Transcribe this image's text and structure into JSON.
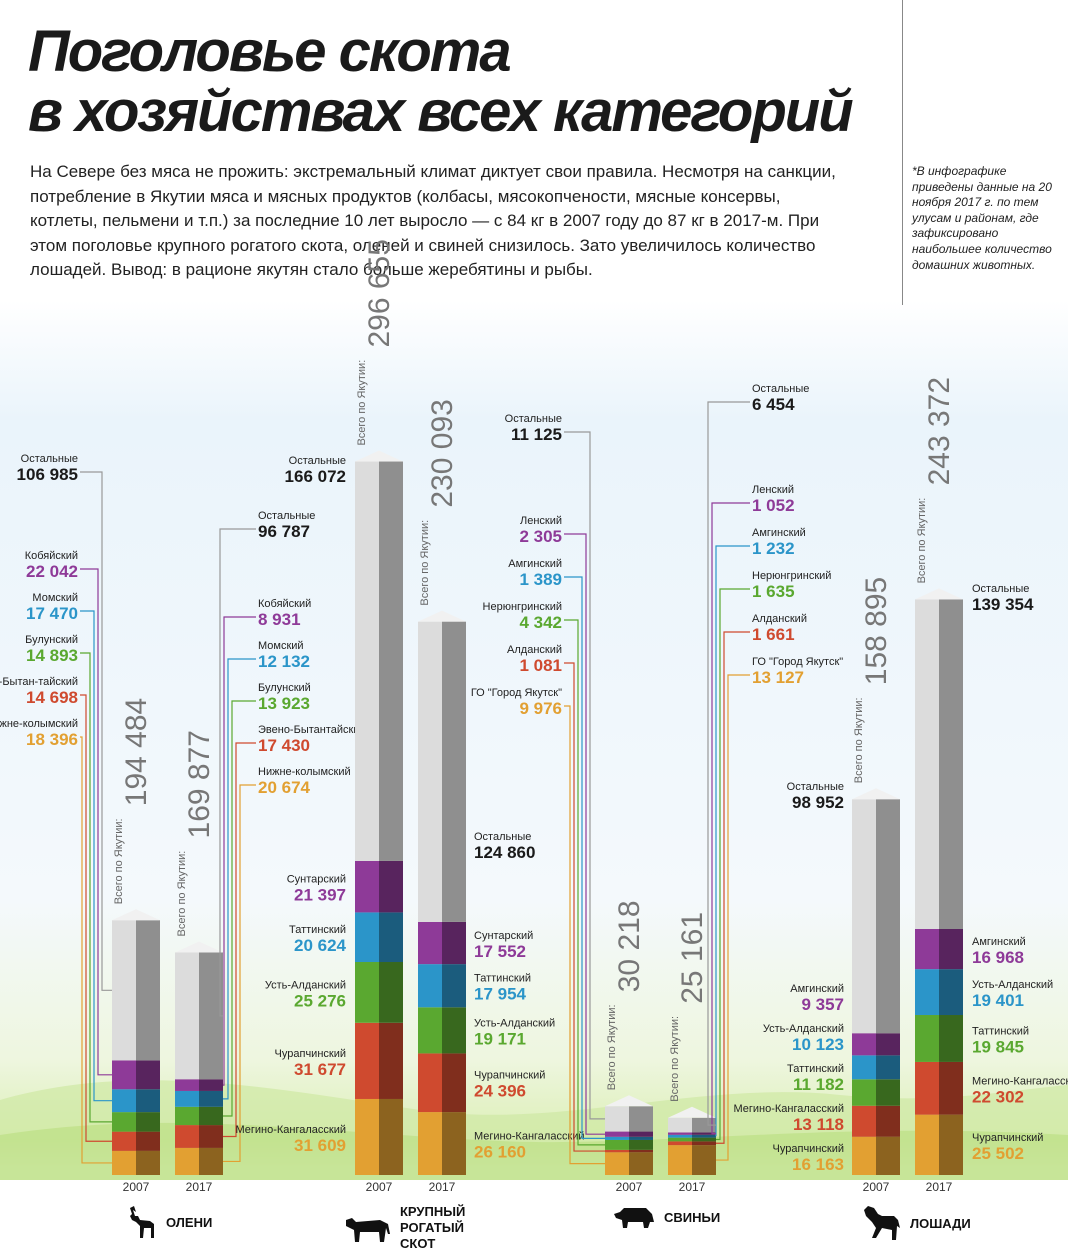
{
  "header": {
    "title_lines": [
      "Поголовье скота",
      "в хозяйствах всех категорий"
    ],
    "intro": "На Севере без мяса не прожить: экстремальный климат диктует свои правила. Несмотря на санкции, потребление в Якутии мяса и мясных продуктов (колбасы, мясокопчености, мясные консервы, котлеты, пельмени и т.п.) за последние 10 лет выросло — с 84 кг в 2007 году до 87 кг в 2017-м. При этом поголовье крупного рогатого скота, оленей и свиней снизилось. Зато увеличилось количество лошадей. Вывод: в рационе якутян стало больше жеребятины и рыбы.",
    "footnote": "*В инфографике приведены данные на 20 ноября 2017 г. по тем улусам и районам, где зафиксировано наибольшее количество домашних животных."
  },
  "total_label": "Всего по Якутии:",
  "colors": {
    "others": "#dcdcdc",
    "purple": "#8e3a98",
    "blue": "#2b95c9",
    "green": "#5aa830",
    "red": "#cf4a2f",
    "orange": "#e2a032",
    "text_dark": "#1a1a1a"
  },
  "chart_data": {
    "type": "bar",
    "stacked": true,
    "groups": [
      {
        "name": "ОЛЕНИ",
        "icon": "deer-icon",
        "bars": [
          {
            "year": "2007",
            "total": "194 484",
            "segments": [
              {
                "label": "Нижне-колымский",
                "value": 18396,
                "text": "18 396",
                "color": "orange"
              },
              {
                "label": "Эвено-Бытан-тайский",
                "value": 14698,
                "text": "14 698",
                "color": "red"
              },
              {
                "label": "Булунский",
                "value": 14893,
                "text": "14 893",
                "color": "green"
              },
              {
                "label": "Момский",
                "value": 17470,
                "text": "17 470",
                "color": "blue"
              },
              {
                "label": "Кобяйский",
                "value": 22042,
                "text": "22 042",
                "color": "purple"
              },
              {
                "label": "Остальные",
                "value": 106985,
                "text": "106 985",
                "color": "others"
              }
            ]
          },
          {
            "year": "2017",
            "total": "169 877",
            "segments": [
              {
                "label": "Нижне-колымский",
                "value": 20674,
                "text": "20 674",
                "color": "orange"
              },
              {
                "label": "Эвено-Бытантайский",
                "value": 17430,
                "text": "17 430",
                "color": "red"
              },
              {
                "label": "Булунский",
                "value": 13923,
                "text": "13 923",
                "color": "green"
              },
              {
                "label": "Момский",
                "value": 12132,
                "text": "12 132",
                "color": "blue"
              },
              {
                "label": "Кобяйский",
                "value": 8931,
                "text": "8 931",
                "color": "purple"
              },
              {
                "label": "Остальные",
                "value": 96787,
                "text": "96 787",
                "color": "others"
              }
            ]
          }
        ]
      },
      {
        "name": "КРУПНЫЙ РОГАТЫЙ СКОТ",
        "icon": "cow-icon",
        "bars": [
          {
            "year": "2007",
            "total": "296 655",
            "segments": [
              {
                "label": "Мегино-Кангаласский",
                "value": 31609,
                "text": "31 609",
                "color": "orange"
              },
              {
                "label": "Чурапчинский",
                "value": 31677,
                "text": "31 677",
                "color": "red"
              },
              {
                "label": "Усть-Алданский",
                "value": 25276,
                "text": "25 276",
                "color": "green"
              },
              {
                "label": "Таттинский",
                "value": 20624,
                "text": "20 624",
                "color": "blue"
              },
              {
                "label": "Сунтарский",
                "value": 21397,
                "text": "21 397",
                "color": "purple"
              },
              {
                "label": "Остальные",
                "value": 166072,
                "text": "166 072",
                "color": "others"
              }
            ]
          },
          {
            "year": "2017",
            "total": "230 093",
            "segments": [
              {
                "label": "Мегино-Кангаласский",
                "value": 26160,
                "text": "26 160",
                "color": "orange"
              },
              {
                "label": "Чурапчинский",
                "value": 24396,
                "text": "24 396",
                "color": "red"
              },
              {
                "label": "Усть-Алданский",
                "value": 19171,
                "text": "19 171",
                "color": "green"
              },
              {
                "label": "Таттинский",
                "value": 17954,
                "text": "17 954",
                "color": "blue"
              },
              {
                "label": "Сунтарский",
                "value": 17552,
                "text": "17 552",
                "color": "purple"
              },
              {
                "label": "Остальные",
                "value": 124860,
                "text": "124 860",
                "color": "others"
              }
            ]
          }
        ]
      },
      {
        "name": "СВИНЬИ",
        "icon": "pig-icon",
        "bars": [
          {
            "year": "2007",
            "total": "30 218",
            "segments": [
              {
                "label": "ГО \"Город Якутск\"",
                "value": 9976,
                "text": "9 976",
                "color": "orange"
              },
              {
                "label": "Алданский",
                "value": 1081,
                "text": "1 081",
                "color": "red"
              },
              {
                "label": "Нерюнгринский",
                "value": 4342,
                "text": "4 342",
                "color": "green"
              },
              {
                "label": "Амгинский",
                "value": 1389,
                "text": "1 389",
                "color": "blue"
              },
              {
                "label": "Ленский",
                "value": 2305,
                "text": "2 305",
                "color": "purple"
              },
              {
                "label": "Остальные",
                "value": 11125,
                "text": "11 125",
                "color": "others"
              }
            ]
          },
          {
            "year": "2017",
            "total": "25 161",
            "segments": [
              {
                "label": "ГО \"Город Якутск\"",
                "value": 13127,
                "text": "13 127",
                "color": "orange"
              },
              {
                "label": "Алданский",
                "value": 1661,
                "text": "1 661",
                "color": "red"
              },
              {
                "label": "Нерюнгринский",
                "value": 1635,
                "text": "1 635",
                "color": "green"
              },
              {
                "label": "Амгинский",
                "value": 1232,
                "text": "1 232",
                "color": "blue"
              },
              {
                "label": "Ленский",
                "value": 1052,
                "text": "1 052",
                "color": "purple"
              },
              {
                "label": "Остальные",
                "value": 6454,
                "text": "6 454",
                "color": "others"
              }
            ]
          }
        ]
      },
      {
        "name": "ЛОШАДИ",
        "icon": "horse-icon",
        "bars": [
          {
            "year": "2007",
            "total": "158 895",
            "segments": [
              {
                "label": "Чурапчинский",
                "value": 16163,
                "text": "16 163",
                "color": "orange"
              },
              {
                "label": "Мегино-Кангаласский",
                "value": 13118,
                "text": "13 118",
                "color": "red"
              },
              {
                "label": "Таттинский",
                "value": 11182,
                "text": "11 182",
                "color": "green"
              },
              {
                "label": "Усть-Алданский",
                "value": 10123,
                "text": "10 123",
                "color": "blue"
              },
              {
                "label": "Амгинский",
                "value": 9357,
                "text": "9 357",
                "color": "purple"
              },
              {
                "label": "Остальные",
                "value": 98952,
                "text": "98 952",
                "color": "others"
              }
            ]
          },
          {
            "year": "2017",
            "total": "243 372",
            "segments": [
              {
                "label": "Чурапчинский",
                "value": 25502,
                "text": "25 502",
                "color": "orange"
              },
              {
                "label": "Мегино-Кангаласский",
                "value": 22302,
                "text": "22 302",
                "color": "red"
              },
              {
                "label": "Таттинский",
                "value": 19845,
                "text": "19 845",
                "color": "green"
              },
              {
                "label": "Усть-Алданский",
                "value": 19401,
                "text": "19 401",
                "color": "blue"
              },
              {
                "label": "Амгинский",
                "value": 16968,
                "text": "16 968",
                "color": "purple"
              },
              {
                "label": "Остальные",
                "value": 139354,
                "text": "139 354",
                "color": "others"
              }
            ]
          }
        ]
      }
    ]
  }
}
